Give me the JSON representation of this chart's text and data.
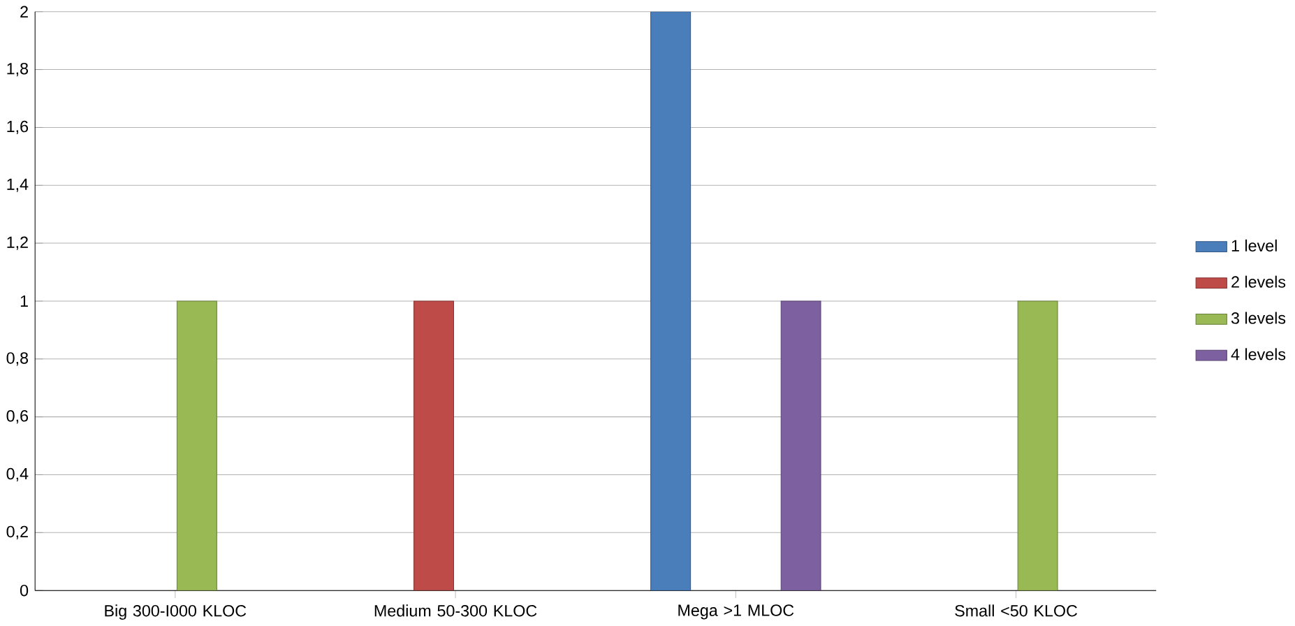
{
  "chart_data": {
    "type": "bar",
    "categories": [
      "Big 300-I000 KLOC",
      "Medium 50-300 KLOC",
      "Mega >1 MLOC",
      "Small <50 KLOC"
    ],
    "series": [
      {
        "name": "1 level",
        "color": "#4a7ebb",
        "values": [
          null,
          null,
          2,
          null
        ]
      },
      {
        "name": "2 levels",
        "color": "#be4b48",
        "values": [
          null,
          1,
          null,
          null
        ]
      },
      {
        "name": "3 levels",
        "color": "#98b954",
        "values": [
          1,
          null,
          null,
          1
        ]
      },
      {
        "name": "4 levels",
        "color": "#7d60a0",
        "values": [
          null,
          null,
          1,
          null
        ]
      }
    ],
    "ylim": [
      0,
      2
    ],
    "yticks": [
      0,
      {
        "value": 0.2,
        "label": "0,2"
      },
      {
        "value": 0.4,
        "label": "0,4"
      },
      {
        "value": 0.6,
        "label": "0,6"
      },
      {
        "value": 0.8,
        "label": "0,8"
      },
      1,
      {
        "value": 1.2,
        "label": "1,2"
      },
      {
        "value": 1.4,
        "label": "1,4"
      },
      {
        "value": 1.6,
        "label": "1,6"
      },
      {
        "value": 1.8,
        "label": "1,8"
      },
      2
    ],
    "grid": "y",
    "legend": "right"
  }
}
